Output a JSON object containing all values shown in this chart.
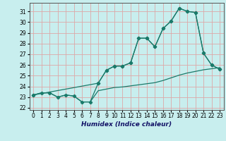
{
  "xlabel": "Humidex (Indice chaleur)",
  "bg_color": "#c8eeee",
  "grid_color": "#dda8a8",
  "line_color": "#1a7a6a",
  "xlim": [
    -0.5,
    23.5
  ],
  "ylim": [
    21.8,
    31.8
  ],
  "xticks": [
    0,
    1,
    2,
    3,
    4,
    5,
    6,
    7,
    8,
    9,
    10,
    11,
    12,
    13,
    14,
    15,
    16,
    17,
    18,
    19,
    20,
    21,
    22,
    23
  ],
  "yticks": [
    22,
    23,
    24,
    25,
    26,
    27,
    28,
    29,
    30,
    31
  ],
  "line1_x": [
    0,
    1,
    2,
    3,
    4,
    5,
    6,
    7,
    8,
    9,
    10,
    11,
    12,
    13,
    14,
    15,
    16,
    17,
    18,
    19,
    20,
    21,
    22,
    23
  ],
  "line1_y": [
    23.2,
    23.4,
    23.4,
    23.0,
    23.2,
    23.1,
    22.55,
    22.55,
    23.6,
    23.75,
    23.9,
    23.95,
    24.05,
    24.15,
    24.25,
    24.35,
    24.55,
    24.8,
    25.05,
    25.25,
    25.4,
    25.55,
    25.65,
    25.75
  ],
  "line2_x": [
    0,
    1,
    2,
    3,
    4,
    5,
    6,
    7,
    8,
    9,
    10,
    11,
    12,
    13,
    14,
    15,
    16,
    17,
    18,
    19,
    20,
    21,
    22,
    23
  ],
  "line2_y": [
    23.2,
    23.4,
    23.4,
    23.0,
    23.2,
    23.1,
    22.55,
    22.55,
    24.3,
    25.5,
    25.9,
    25.9,
    26.2,
    28.5,
    28.5,
    27.7,
    29.4,
    30.1,
    31.3,
    31.0,
    30.9,
    27.1,
    26.0,
    25.6
  ],
  "line3_x": [
    0,
    8,
    9,
    10,
    11,
    12,
    13,
    14,
    15,
    16,
    17,
    18,
    19,
    20,
    21,
    22,
    23
  ],
  "line3_y": [
    23.2,
    24.3,
    25.5,
    25.9,
    25.9,
    26.2,
    28.5,
    28.5,
    27.7,
    29.4,
    30.1,
    31.3,
    31.0,
    30.9,
    27.1,
    26.0,
    25.6
  ]
}
